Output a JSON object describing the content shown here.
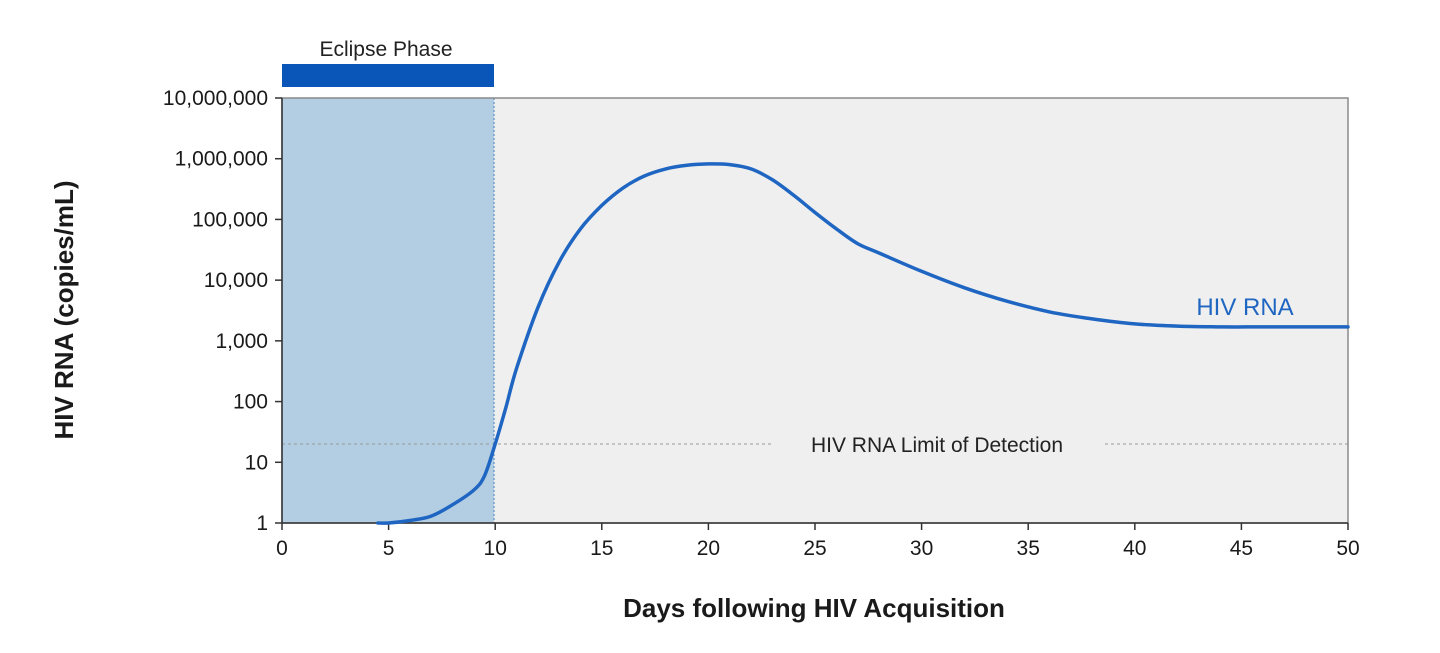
{
  "chart_data": {
    "type": "line",
    "title": "",
    "xlabel": "Days following HIV Acquisition",
    "ylabel": "HIV RNA (copies/mL)",
    "xlim": [
      0,
      50
    ],
    "ylim": [
      1,
      10000000
    ],
    "y_scale": "log",
    "x_ticks": [
      0,
      5,
      10,
      15,
      20,
      25,
      30,
      35,
      40,
      45,
      50
    ],
    "y_ticks": [
      {
        "value": 1,
        "label": "1"
      },
      {
        "value": 10,
        "label": "10"
      },
      {
        "value": 100,
        "label": "100"
      },
      {
        "value": 1000,
        "label": "1,000"
      },
      {
        "value": 10000,
        "label": "10,000"
      },
      {
        "value": 100000,
        "label": "100,000"
      },
      {
        "value": 1000000,
        "label": "1,000,000"
      },
      {
        "value": 10000000,
        "label": "10,000,000"
      }
    ],
    "grid": false,
    "series": [
      {
        "name": "HIV RNA",
        "color": "#1f66c2",
        "x": [
          4.5,
          5,
          6,
          7,
          8,
          9,
          9.5,
          10,
          10.5,
          11,
          12,
          13,
          14,
          15,
          16,
          17,
          18,
          19,
          20,
          21,
          22,
          23,
          24,
          25,
          26,
          27,
          28,
          30,
          32,
          34,
          36,
          38,
          40,
          42,
          44,
          46,
          48,
          50
        ],
        "y": [
          1,
          1,
          1.1,
          1.3,
          2,
          3.5,
          6,
          20,
          80,
          350,
          3500,
          20000,
          70000,
          170000,
          330000,
          520000,
          680000,
          780000,
          820000,
          800000,
          680000,
          450000,
          250000,
          130000,
          70000,
          40000,
          28000,
          14000,
          7500,
          4500,
          3000,
          2300,
          1900,
          1750,
          1700,
          1700,
          1700,
          1700
        ]
      }
    ],
    "shaded_region": {
      "label": "Eclipse Phase",
      "x_start": 0,
      "x_end": 10,
      "color": "#b3cde3",
      "bar_color": "#0a56b8"
    },
    "reference_line": {
      "label": "HIV RNA Limit of Detection",
      "y": 20
    },
    "plot_background": "#efefef",
    "series_label": "HIV RNA"
  }
}
